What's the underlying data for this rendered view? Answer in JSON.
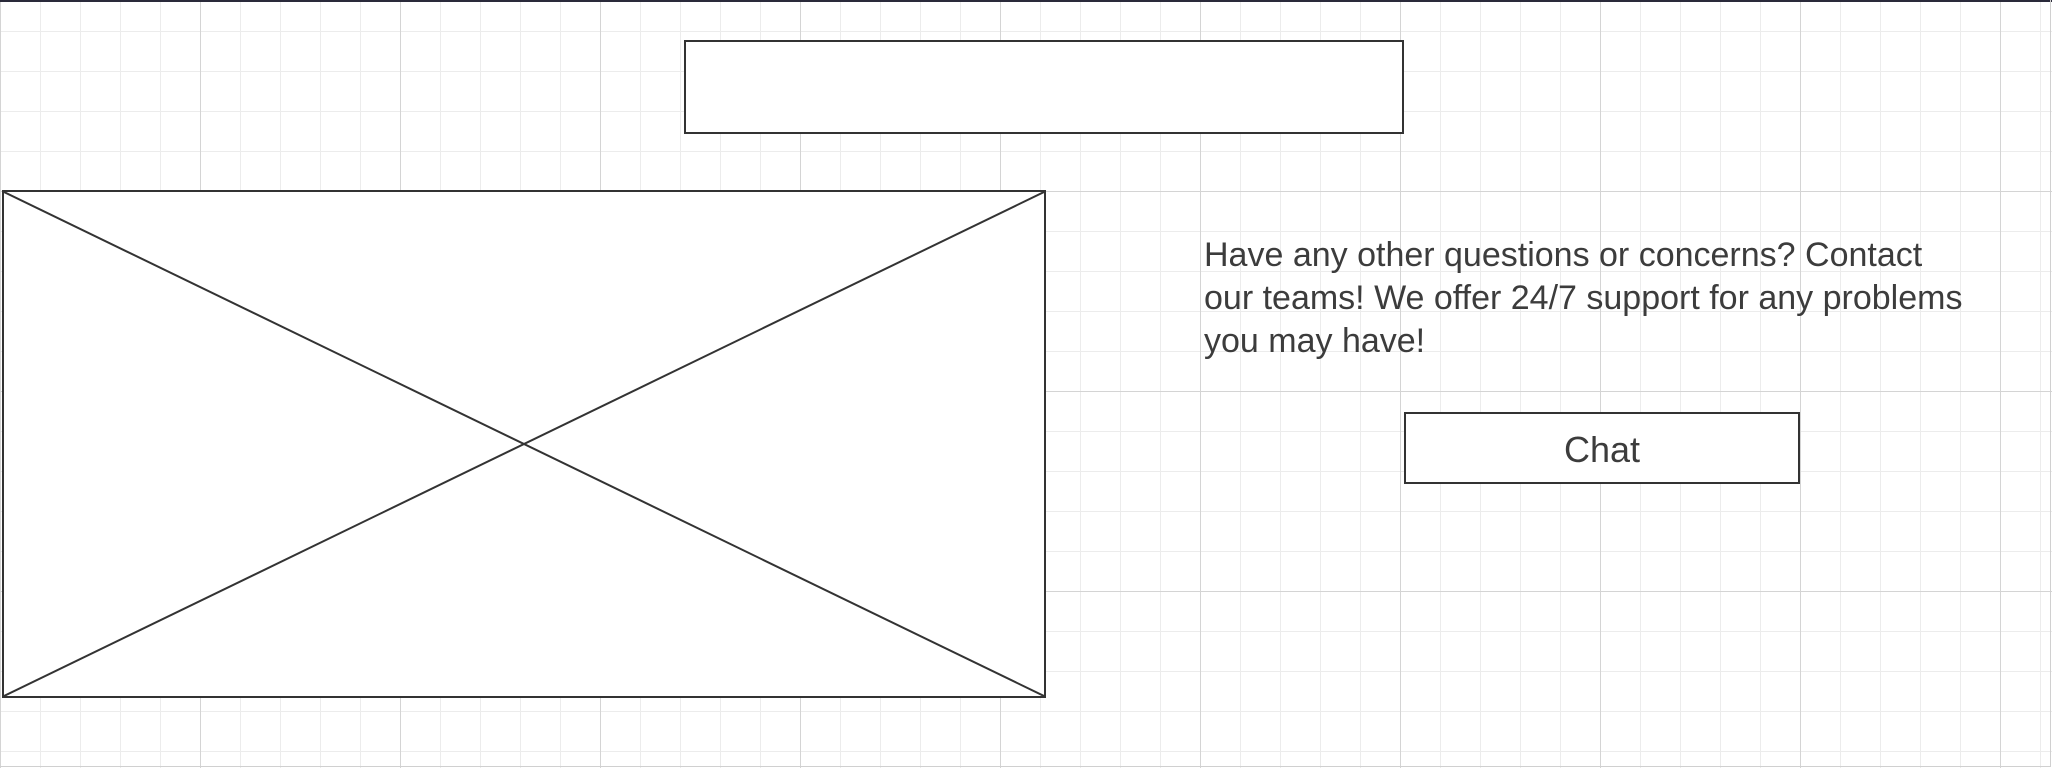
{
  "header": {
    "title": ""
  },
  "image": {
    "icon": "image-placeholder-icon"
  },
  "support": {
    "text": "Have any other questions or concerns? Contact our teams! We offer 24/7 support for any problems you may have!"
  },
  "chat_button": {
    "label": "Chat"
  },
  "colors": {
    "stroke": "#333333",
    "text": "#3c3c3c",
    "grid_major": "#d4d4d4",
    "grid_minor": "#ececec"
  }
}
